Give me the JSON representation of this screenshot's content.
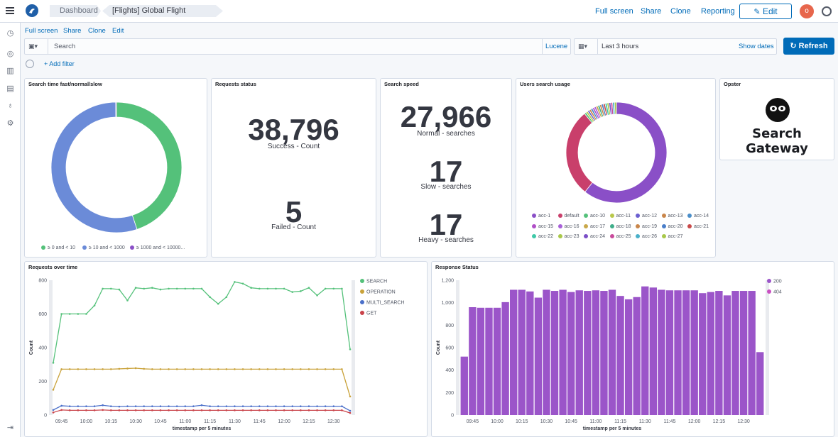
{
  "header": {
    "breadcrumbs": [
      "Dashboard",
      "[Flights] Global Flight Dashboard"
    ],
    "links": [
      "Full screen",
      "Share",
      "Clone",
      "Reporting"
    ],
    "edit_label": "Edit",
    "avatar_letter": "o"
  },
  "subnav": {
    "links": [
      "Full screen",
      "Share",
      "Clone",
      "Edit"
    ]
  },
  "query": {
    "search_placeholder": "Search",
    "language": "Lucene",
    "time_range": "Last 3 hours",
    "show_dates": "Show dates",
    "refresh_label": "Refresh",
    "add_filter": "+ Add filter"
  },
  "panels": {
    "search_time": {
      "title": "Search time fast/normal/slow",
      "legend": [
        "≥ 0 and < 10",
        "≥ 10 and < 1000",
        "≥ 1000 and < 10000..."
      ]
    },
    "requests_status": {
      "title": "Requests status",
      "metrics": [
        {
          "value": "38,796",
          "label": "Success - Count"
        },
        {
          "value": "5",
          "label": "Failed - Count"
        }
      ]
    },
    "search_speed": {
      "title": "Search speed",
      "metrics": [
        {
          "value": "27,966",
          "label": "Normal - searches"
        },
        {
          "value": "17",
          "label": "Slow - searches"
        },
        {
          "value": "17",
          "label": "Heavy - searches"
        }
      ]
    },
    "users_search_usage": {
      "title": "Users search usage",
      "legend": [
        "acc-1",
        "default",
        "acc-10",
        "acc-11",
        "acc-12",
        "acc-13",
        "acc-14",
        "acc-15",
        "acc-16",
        "acc-17",
        "acc-18",
        "acc-19",
        "acc-20",
        "acc-21",
        "acc-22",
        "acc-23",
        "acc-24",
        "acc-25",
        "acc-26",
        "acc-27"
      ]
    },
    "opster": {
      "title": "Opster",
      "logo_text": "Search Gateway"
    },
    "requests_over_time": {
      "title": "Requests over time"
    },
    "response_status": {
      "title": "Response Status"
    }
  },
  "colors": {
    "green": "#54b399",
    "blue": "#6092c0",
    "purple": "#9170b8",
    "accent": "#006bb8"
  },
  "chart_data": [
    {
      "type": "pie",
      "title": "Search time fast/normal/slow",
      "categories": [
        "≥ 0 and < 10",
        "≥ 10 and < 1000",
        "≥ 1000 and < 10000..."
      ],
      "values": [
        45,
        55,
        0.2
      ],
      "colors": [
        "#54c17a",
        "#6b8bd8",
        "#8a4fc7"
      ]
    },
    {
      "type": "pie",
      "title": "Users search usage",
      "categories": [
        "acc-1",
        "default",
        "acc-10",
        "acc-11",
        "acc-12",
        "acc-13",
        "acc-14",
        "acc-15",
        "acc-16",
        "acc-17",
        "acc-18",
        "acc-19",
        "acc-20",
        "acc-21",
        "acc-22",
        "acc-23",
        "acc-24",
        "acc-25",
        "acc-26",
        "acc-27"
      ],
      "values": [
        60,
        28,
        0.6,
        0.6,
        0.6,
        0.6,
        0.6,
        0.6,
        0.6,
        0.6,
        0.6,
        0.6,
        0.6,
        0.6,
        0.6,
        0.6,
        0.6,
        0.6,
        0.6,
        0.6
      ],
      "colors": [
        "#8a4fc7",
        "#c93f6b",
        "#54c17a",
        "#b9c84a",
        "#6b5fd0",
        "#c9864a",
        "#4a8ec9",
        "#b04fc7",
        "#a860d9",
        "#c9a84a",
        "#3fae8a",
        "#c9864a",
        "#4a7ec9",
        "#c94a4a",
        "#3fc9a8",
        "#a9c84a",
        "#7b4fc7",
        "#c94a9c",
        "#4ab0c9",
        "#a8c84a"
      ]
    },
    {
      "type": "line",
      "title": "Requests over time",
      "xlabel": "timestamp per 5 minutes",
      "ylabel": "Count",
      "ylim": [
        0,
        800
      ],
      "yticks": [
        0,
        200,
        400,
        600,
        800
      ],
      "x": [
        "09:40",
        "09:45",
        "09:50",
        "09:55",
        "10:00",
        "10:05",
        "10:10",
        "10:15",
        "10:20",
        "10:25",
        "10:30",
        "10:35",
        "10:40",
        "10:45",
        "10:50",
        "10:55",
        "11:00",
        "11:05",
        "11:10",
        "11:15",
        "11:20",
        "11:25",
        "11:30",
        "11:35",
        "11:40",
        "11:45",
        "11:50",
        "11:55",
        "12:00",
        "12:05",
        "12:10",
        "12:15",
        "12:20",
        "12:25",
        "12:30",
        "12:35",
        "12:40"
      ],
      "xticklabels": [
        "09:45",
        "10:00",
        "10:15",
        "10:30",
        "10:45",
        "11:00",
        "11:15",
        "11:30",
        "11:45",
        "12:00",
        "12:15",
        "12:30"
      ],
      "series": [
        {
          "name": "SEARCH",
          "color": "#54c17a",
          "values": [
            310,
            600,
            600,
            600,
            600,
            650,
            750,
            750,
            745,
            680,
            755,
            750,
            755,
            745,
            750,
            750,
            750,
            750,
            750,
            700,
            660,
            700,
            790,
            780,
            755,
            750,
            750,
            750,
            750,
            730,
            735,
            755,
            710,
            750,
            750,
            750,
            390
          ]
        },
        {
          "name": "OPERATION",
          "color": "#c9a23a",
          "values": [
            150,
            272,
            272,
            272,
            272,
            272,
            272,
            272,
            274,
            276,
            278,
            274,
            272,
            272,
            272,
            272,
            272,
            272,
            272,
            272,
            272,
            272,
            272,
            272,
            272,
            272,
            272,
            272,
            272,
            272,
            272,
            272,
            272,
            272,
            272,
            272,
            110
          ]
        },
        {
          "name": "MULTI_SEARCH",
          "color": "#4a6fc9",
          "values": [
            30,
            55,
            52,
            52,
            52,
            52,
            58,
            52,
            50,
            52,
            52,
            52,
            52,
            52,
            52,
            52,
            52,
            52,
            58,
            52,
            52,
            52,
            52,
            52,
            52,
            52,
            52,
            52,
            52,
            52,
            52,
            52,
            52,
            52,
            52,
            52,
            25
          ]
        },
        {
          "name": "GET",
          "color": "#c9434a",
          "values": [
            15,
            30,
            28,
            28,
            28,
            28,
            30,
            28,
            28,
            28,
            28,
            28,
            28,
            28,
            28,
            28,
            28,
            28,
            28,
            28,
            28,
            28,
            28,
            28,
            28,
            28,
            28,
            28,
            28,
            28,
            28,
            28,
            28,
            28,
            28,
            28,
            12
          ]
        }
      ]
    },
    {
      "type": "bar",
      "title": "Response Status",
      "xlabel": "timestamp per 5 minutes",
      "ylabel": "Count",
      "ylim": [
        0,
        1200
      ],
      "yticks": [
        0,
        200,
        400,
        600,
        800,
        1000,
        1200
      ],
      "categories": [
        "09:40",
        "09:45",
        "09:50",
        "09:55",
        "10:00",
        "10:05",
        "10:10",
        "10:15",
        "10:20",
        "10:25",
        "10:30",
        "10:35",
        "10:40",
        "10:45",
        "10:50",
        "10:55",
        "11:00",
        "11:05",
        "11:10",
        "11:15",
        "11:20",
        "11:25",
        "11:30",
        "11:35",
        "11:40",
        "11:45",
        "11:50",
        "11:55",
        "12:00",
        "12:05",
        "12:10",
        "12:15",
        "12:20",
        "12:25",
        "12:30",
        "12:35",
        "12:40"
      ],
      "xticklabels": [
        "09:45",
        "10:00",
        "10:15",
        "10:30",
        "10:45",
        "11:00",
        "11:15",
        "11:30",
        "11:45",
        "12:00",
        "12:15",
        "12:30"
      ],
      "series": [
        {
          "name": "200",
          "color": "#9b55c9",
          "values": [
            520,
            960,
            955,
            955,
            955,
            1005,
            1115,
            1115,
            1100,
            1045,
            1115,
            1105,
            1115,
            1095,
            1110,
            1105,
            1110,
            1105,
            1115,
            1060,
            1030,
            1050,
            1145,
            1135,
            1115,
            1110,
            1110,
            1110,
            1110,
            1085,
            1095,
            1105,
            1065,
            1105,
            1105,
            1105,
            560
          ]
        },
        {
          "name": "404",
          "color": "#c94fc2",
          "values": [
            0,
            0,
            0,
            0,
            0,
            0,
            0,
            0,
            0,
            0,
            0,
            0,
            0,
            0,
            0,
            0,
            0,
            0,
            0,
            0,
            0,
            0,
            0,
            0,
            0,
            0,
            0,
            0,
            0,
            0,
            0,
            0,
            0,
            0,
            0,
            0,
            0
          ]
        }
      ]
    }
  ]
}
